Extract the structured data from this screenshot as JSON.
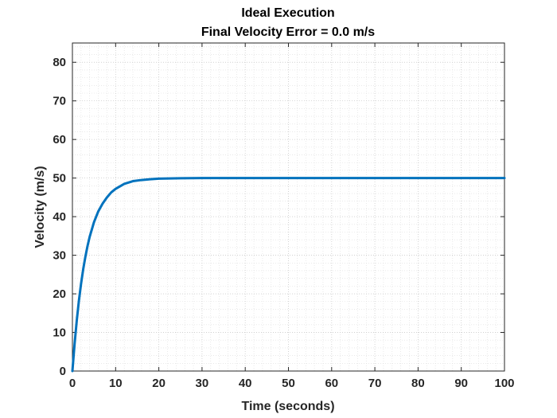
{
  "chart_data": {
    "type": "line",
    "title": "Ideal Execution",
    "subtitle": "Final Velocity Error = 0.0 m/s",
    "xlabel": "Time (seconds)",
    "ylabel": "Velocity (m/s)",
    "xlim": [
      0,
      100
    ],
    "ylim": [
      0,
      85
    ],
    "xticks": [
      "0",
      "10",
      "20",
      "30",
      "40",
      "50",
      "60",
      "70",
      "80",
      "90",
      "100"
    ],
    "yticks": [
      "0",
      "10",
      "20",
      "30",
      "40",
      "50",
      "60",
      "70",
      "80"
    ],
    "grid": true,
    "minor_grid": true,
    "line_color": "#0072BD",
    "series": [
      {
        "x": [
          0,
          0.5,
          1,
          1.5,
          2,
          2.5,
          3,
          3.5,
          4,
          5,
          6,
          7,
          8,
          9,
          10,
          12,
          14,
          16,
          18,
          20,
          25,
          30,
          40,
          50,
          60,
          70,
          80,
          90,
          100
        ],
        "values": [
          0,
          7.0,
          13.0,
          18.2,
          22.6,
          26.4,
          29.6,
          32.4,
          34.8,
          38.6,
          41.4,
          43.4,
          45.0,
          46.3,
          47.2,
          48.5,
          49.2,
          49.5,
          49.7,
          49.85,
          49.95,
          50.0,
          50.0,
          50.0,
          50.0,
          50.0,
          50.0,
          50.0,
          50.0
        ]
      }
    ]
  }
}
